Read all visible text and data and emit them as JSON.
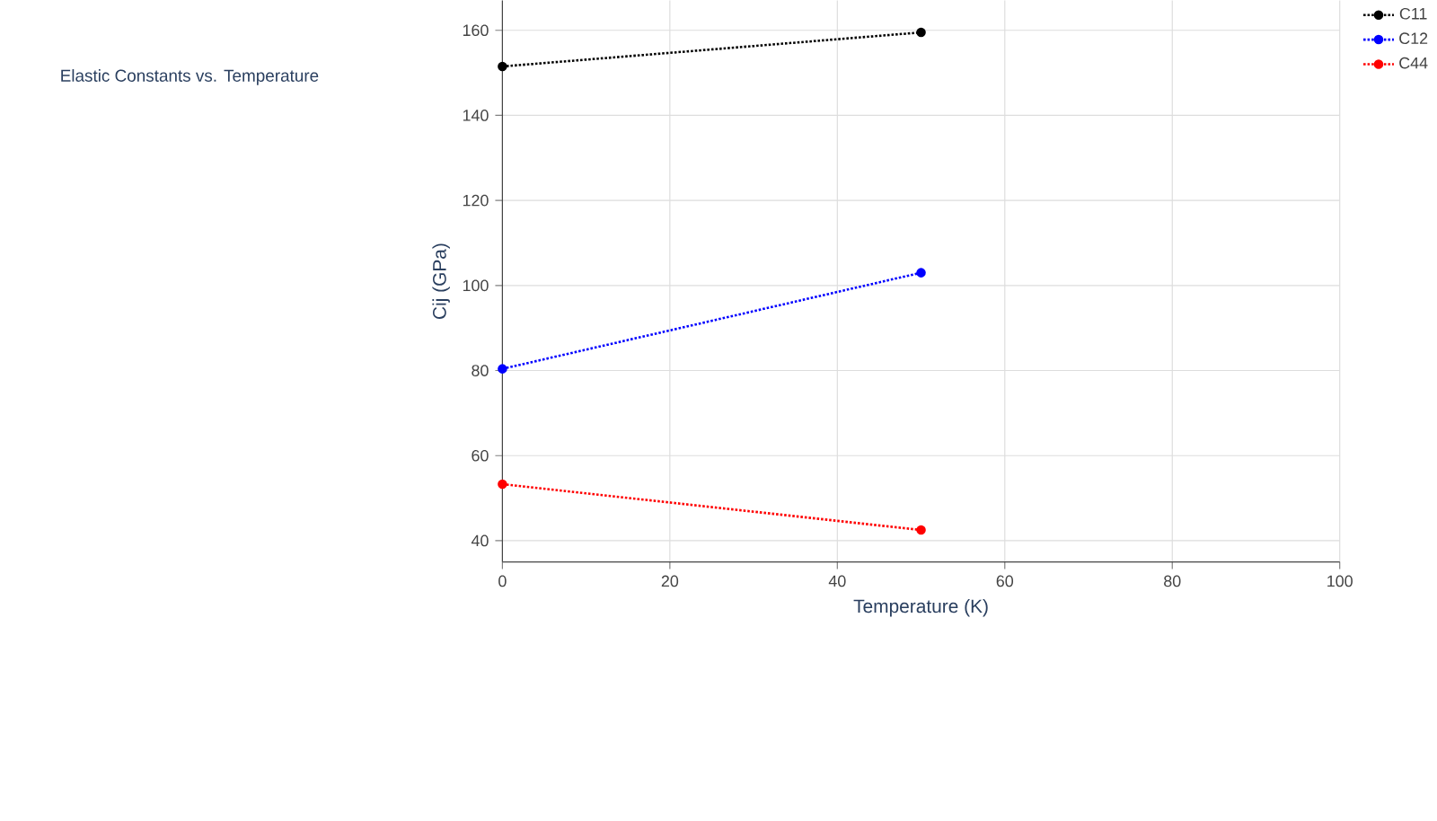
{
  "chart_data": {
    "type": "line",
    "title": "Elastic Constants vs. Temperature",
    "xlabel": "Temperature (K)",
    "ylabel": "Cij (GPa)",
    "x": [
      0,
      50
    ],
    "series": [
      {
        "name": "C11",
        "color": "#000000",
        "values": [
          151.5,
          159.5
        ]
      },
      {
        "name": "C12",
        "color": "#0000ff",
        "values": [
          80.4,
          103
        ]
      },
      {
        "name": "C44",
        "color": "#ff0000",
        "values": [
          53.3,
          42.5
        ]
      }
    ],
    "xlim": [
      0,
      100
    ],
    "xticks": [
      0,
      20,
      40,
      60,
      80,
      100
    ],
    "ylim": [
      35,
      167
    ],
    "yticks": [
      40,
      60,
      80,
      100,
      120,
      140,
      160
    ],
    "grid": true,
    "legend": "top right",
    "marker": "circle",
    "line_style": "dotted"
  }
}
